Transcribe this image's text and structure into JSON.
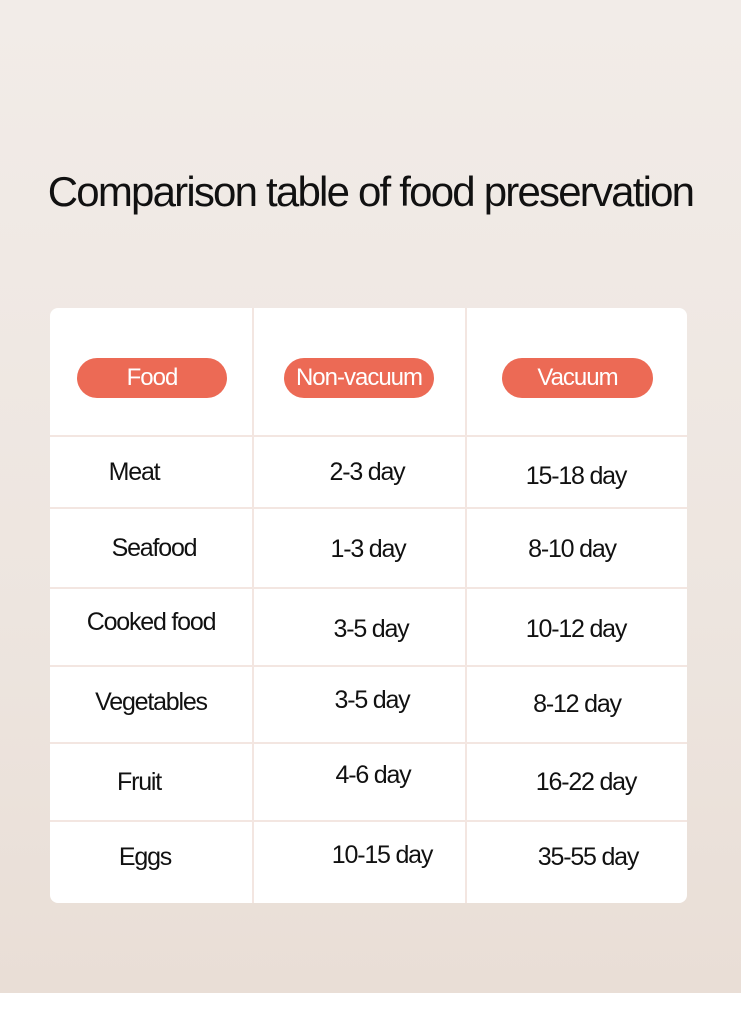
{
  "title": "Comparison table of food preservation",
  "colors": {
    "accent": "#ec6a55",
    "background": "#efe8e3",
    "card": "#ffffff",
    "divider": "#f3e6e1",
    "text": "#111111"
  },
  "table": {
    "headers": [
      "Food",
      "Non-vacuum",
      "Vacuum"
    ],
    "rows": [
      [
        "Meat",
        "2-3 day",
        "15-18 day"
      ],
      [
        "Seafood",
        "1-3 day",
        "8-10 day"
      ],
      [
        "Cooked food",
        "3-5 day",
        "10-12 day"
      ],
      [
        "Vegetables",
        "3-5 day",
        "8-12 day"
      ],
      [
        "Fruit",
        "4-6 day",
        "16-22 day"
      ],
      [
        "Eggs",
        "10-15 day",
        "35-55 day"
      ]
    ]
  }
}
